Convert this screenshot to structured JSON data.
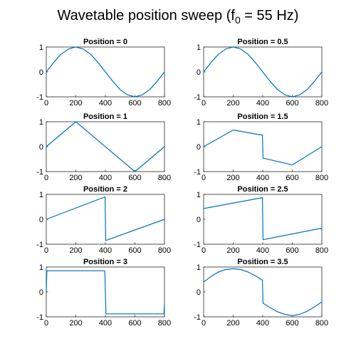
{
  "figure": {
    "suptitle_main": "Wavetable position sweep (f",
    "suptitle_sub": "0",
    "suptitle_end": " = 55 Hz)"
  },
  "colors": {
    "line": "#0072bd",
    "axes": "#262626",
    "background": "#ffffff"
  },
  "chart_data": [
    {
      "type": "line",
      "title": "Position = 0",
      "xlim": [
        0,
        800
      ],
      "ylim": [
        -1,
        1
      ],
      "xticks": [
        0,
        200,
        400,
        600,
        800
      ],
      "yticks": [
        -1,
        0,
        1
      ],
      "xtick_labels": [
        "0",
        "200",
        "400",
        "600",
        "800"
      ],
      "ytick_labels": [
        "-1",
        "0",
        "1"
      ],
      "series": [
        {
          "shape": "sine",
          "note": "y = sin(2*pi*x/800)"
        }
      ],
      "x": [
        0,
        50,
        100,
        150,
        200,
        250,
        300,
        350,
        400,
        450,
        500,
        550,
        600,
        650,
        700,
        750,
        800
      ],
      "y": [
        0,
        0.38,
        0.71,
        0.92,
        1,
        0.92,
        0.71,
        0.38,
        0,
        -0.38,
        -0.71,
        -0.92,
        -1,
        -0.92,
        -0.71,
        -0.38,
        0
      ]
    },
    {
      "type": "line",
      "title": "Position = 0.5",
      "xlim": [
        0,
        800
      ],
      "ylim": [
        -1,
        1
      ],
      "xticks": [
        0,
        200,
        400,
        600,
        800
      ],
      "yticks": [
        -1,
        0,
        1
      ],
      "xtick_labels": [
        "0",
        "200",
        "400",
        "600",
        "800"
      ],
      "ytick_labels": [
        "-1",
        "0",
        "1"
      ],
      "x": [
        0,
        50,
        100,
        150,
        200,
        250,
        300,
        350,
        400,
        450,
        500,
        550,
        600,
        650,
        700,
        750,
        800
      ],
      "y": [
        0,
        0.38,
        0.71,
        0.92,
        1,
        0.92,
        0.71,
        0.38,
        0,
        -0.38,
        -0.71,
        -0.92,
        -1,
        -0.92,
        -0.71,
        -0.38,
        0
      ]
    },
    {
      "type": "line",
      "title": "Position = 1",
      "xlim": [
        0,
        800
      ],
      "ylim": [
        -1,
        1
      ],
      "xticks": [
        0,
        200,
        400,
        600,
        800
      ],
      "yticks": [
        -1,
        0,
        1
      ],
      "xtick_labels": [
        "0",
        "200",
        "400",
        "600",
        "800"
      ],
      "ytick_labels": [
        "-1",
        "0",
        "1"
      ],
      "x": [
        0,
        200,
        600,
        800
      ],
      "y": [
        0,
        1,
        -1,
        0
      ]
    },
    {
      "type": "line",
      "title": "Position = 1.5",
      "xlim": [
        0,
        800
      ],
      "ylim": [
        -1,
        1
      ],
      "xticks": [
        0,
        200,
        400,
        600,
        800
      ],
      "yticks": [
        -1,
        0,
        1
      ],
      "xtick_labels": [
        "0",
        "200",
        "400",
        "600",
        "800"
      ],
      "ytick_labels": [
        "-1",
        "0",
        "1"
      ],
      "x": [
        0,
        200,
        398,
        402,
        600,
        800
      ],
      "y": [
        0,
        0.67,
        0.46,
        -0.46,
        -0.73,
        0
      ]
    },
    {
      "type": "line",
      "title": "Position = 2",
      "xlim": [
        0,
        800
      ],
      "ylim": [
        -1,
        1
      ],
      "xticks": [
        0,
        200,
        400,
        600,
        800
      ],
      "yticks": [
        -1,
        0,
        1
      ],
      "xtick_labels": [
        "0",
        "200",
        "400",
        "600",
        "800"
      ],
      "ytick_labels": [
        "-1",
        "0",
        "1"
      ],
      "x": [
        0,
        398,
        402,
        800
      ],
      "y": [
        0,
        0.9,
        -0.85,
        0
      ]
    },
    {
      "type": "line",
      "title": "Position = 2.5",
      "xlim": [
        0,
        800
      ],
      "ylim": [
        -1,
        1
      ],
      "xticks": [
        0,
        200,
        400,
        600,
        800
      ],
      "yticks": [
        -1,
        0,
        1
      ],
      "xtick_labels": [
        "0",
        "200",
        "400",
        "600",
        "800"
      ],
      "ytick_labels": [
        "-1",
        "0",
        "1"
      ],
      "x": [
        0,
        398,
        402,
        795,
        800
      ],
      "y": [
        0.43,
        0.87,
        -0.82,
        -0.36,
        -0.43
      ]
    },
    {
      "type": "line",
      "title": "Position = 3",
      "xlim": [
        0,
        800
      ],
      "ylim": [
        -1,
        1
      ],
      "xticks": [
        0,
        200,
        400,
        600,
        800
      ],
      "yticks": [
        -1,
        0,
        1
      ],
      "xtick_labels": [
        "0",
        "200",
        "400",
        "600",
        "800"
      ],
      "ytick_labels": [
        "-1",
        "0",
        "1"
      ],
      "x": [
        0,
        4,
        396,
        400,
        404,
        796,
        800
      ],
      "y": [
        0,
        0.85,
        0.85,
        0,
        -0.88,
        -0.88,
        -0.5
      ]
    },
    {
      "type": "line",
      "title": "Position = 3.5",
      "xlim": [
        0,
        800
      ],
      "ylim": [
        -1,
        1
      ],
      "xticks": [
        0,
        200,
        400,
        600,
        800
      ],
      "yticks": [
        -1,
        0,
        1
      ],
      "xtick_labels": [
        "0",
        "200",
        "400",
        "600",
        "800"
      ],
      "ytick_labels": [
        "-1",
        "0",
        "1"
      ],
      "x": [
        0,
        50,
        100,
        150,
        200,
        250,
        300,
        350,
        398,
        402,
        450,
        500,
        550,
        600,
        650,
        700,
        750,
        800
      ],
      "y": [
        0.4,
        0.62,
        0.8,
        0.9,
        0.93,
        0.9,
        0.8,
        0.65,
        0.47,
        -0.45,
        -0.63,
        -0.8,
        -0.9,
        -0.95,
        -0.9,
        -0.78,
        -0.6,
        -0.4
      ]
    }
  ]
}
